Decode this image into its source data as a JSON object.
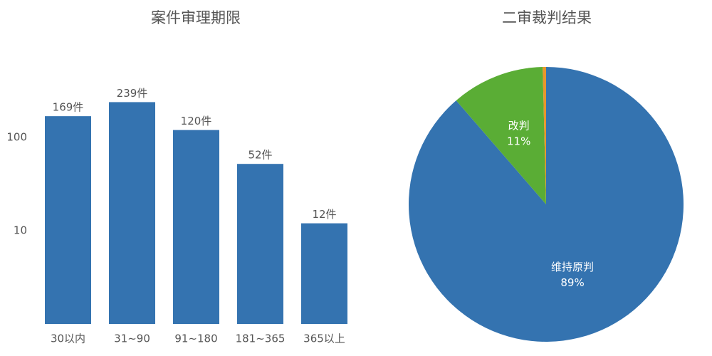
{
  "chart_data": [
    {
      "type": "bar",
      "title": "案件审理期限",
      "categories": [
        "30以内",
        "31~90",
        "91~180",
        "181~365",
        "365以上"
      ],
      "values": [
        169,
        239,
        120,
        52,
        12
      ],
      "value_labels": [
        "169件",
        "239件",
        "120件",
        "52件",
        "12件"
      ],
      "color": "#3473b0",
      "log": true,
      "grid": false,
      "ylim": [
        1,
        1000
      ],
      "yticks": [
        10,
        100
      ]
    },
    {
      "type": "pie",
      "title": "二审裁判结果",
      "categories": [
        "维持原判",
        "改判",
        null
      ],
      "values": [
        89,
        11,
        0.4
      ],
      "value_labels": [
        "89%",
        "11%",
        null
      ],
      "colors": [
        "#3473b0",
        "#5aad35",
        "#e8962c"
      ]
    }
  ]
}
